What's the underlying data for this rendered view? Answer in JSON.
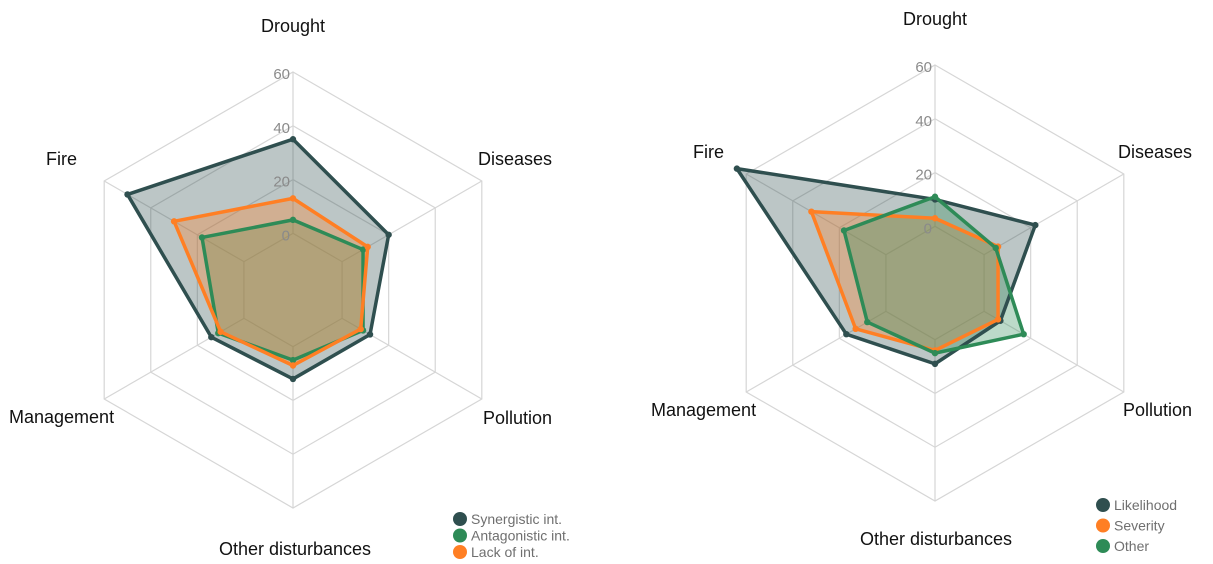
{
  "chart_data": [
    {
      "type": "radar",
      "axes": [
        "Drought",
        "Diseases",
        "Pollution",
        "Other disturbances",
        "Management",
        "Fire"
      ],
      "radial_ticks": [
        "0",
        "20",
        "40",
        "60"
      ],
      "rlim": [
        0,
        60
      ],
      "grid": true,
      "legend_position": "bottom-right",
      "series": [
        {
          "name": "Synergistic int.",
          "color": "#2f4f4f",
          "values": [
            35,
            20,
            12,
            12,
            14,
            50
          ]
        },
        {
          "name": "Antagonistic int.",
          "color": "#2e8b57",
          "values": [
            5,
            9,
            9,
            5,
            11,
            18
          ]
        },
        {
          "name": "Lack of int.",
          "color": "#ff7f24",
          "values": [
            13,
            11,
            8,
            7,
            10,
            30
          ]
        }
      ]
    },
    {
      "type": "radar",
      "axes": [
        "Drought",
        "Diseases",
        "Pollution",
        "Other disturbances",
        "Management",
        "Fire"
      ],
      "radial_ticks": [
        "0",
        "20",
        "40",
        "60"
      ],
      "rlim": [
        0,
        60
      ],
      "grid": true,
      "legend_position": "bottom-right",
      "series": [
        {
          "name": "Likelihood",
          "color": "#2f4f4f",
          "values": [
            10,
            22,
            7,
            9,
            17,
            64
          ]
        },
        {
          "name": "Severity",
          "color": "#ff7f24",
          "values": [
            3,
            6,
            6,
            4,
            13,
            32
          ]
        },
        {
          "name": "Other",
          "color": "#2e8b57",
          "values": [
            11,
            5,
            17,
            5,
            8,
            18
          ]
        }
      ]
    }
  ]
}
